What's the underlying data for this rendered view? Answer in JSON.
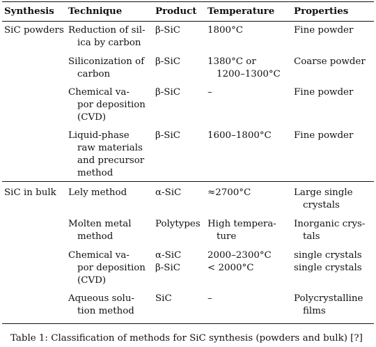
{
  "table": {
    "headers": [
      "Synthesis",
      "Technique",
      "Product",
      "Temperature",
      "Properties"
    ],
    "groups": [
      {
        "synthesis": "SiC powders",
        "rows": [
          {
            "technique": [
              "Reduction of sil-",
              "ica by carbon"
            ],
            "product": [
              "β-SiC"
            ],
            "temperature": [
              "1800°C"
            ],
            "properties": [
              "Fine powder"
            ]
          },
          {
            "technique": [
              "Siliconization of",
              "carbon"
            ],
            "product": [
              "β-SiC"
            ],
            "temperature": [
              "1380°C or",
              "1200–1300°C"
            ],
            "properties": [
              "Coarse powder"
            ]
          },
          {
            "technique": [
              "Chemical va-",
              "por deposition",
              "(CVD)"
            ],
            "product": [
              "β-SiC"
            ],
            "temperature": [
              "–"
            ],
            "properties": [
              "Fine powder"
            ]
          },
          {
            "technique": [
              "Liquid-phase",
              "raw materials",
              "and precursor",
              "method"
            ],
            "product": [
              "β-SiC"
            ],
            "temperature": [
              "1600–1800°C"
            ],
            "properties": [
              "Fine powder"
            ]
          }
        ]
      },
      {
        "synthesis": "SiC in bulk",
        "rows": [
          {
            "technique": [
              "Lely method"
            ],
            "product": [
              "α-SiC"
            ],
            "temperature": [
              "≈2700°C"
            ],
            "properties": [
              "Large single",
              "crystals"
            ]
          },
          {
            "technique": [
              "Molten metal",
              "method"
            ],
            "product": [
              "Polytypes"
            ],
            "temperature": [
              "High tempera-",
              "ture"
            ],
            "properties": [
              "Inorganic crys-",
              "tals"
            ]
          },
          {
            "technique": [
              "Chemical va-",
              "por deposition",
              "(CVD)"
            ],
            "product": [
              "α-SiC",
              "β-SiC"
            ],
            "temperature": [
              "2000–2300°C",
              "< 2000°C"
            ],
            "properties": [
              "single crystals",
              "single crystals"
            ]
          },
          {
            "technique": [
              "Aqueous solu-",
              "tion method"
            ],
            "product": [
              "SiC"
            ],
            "temperature": [
              "–"
            ],
            "properties": [
              "Polycrystalline",
              "films"
            ]
          }
        ]
      }
    ]
  },
  "caption": "Table 1: Classification of methods for SiC synthesis (powders and bulk) [?]"
}
